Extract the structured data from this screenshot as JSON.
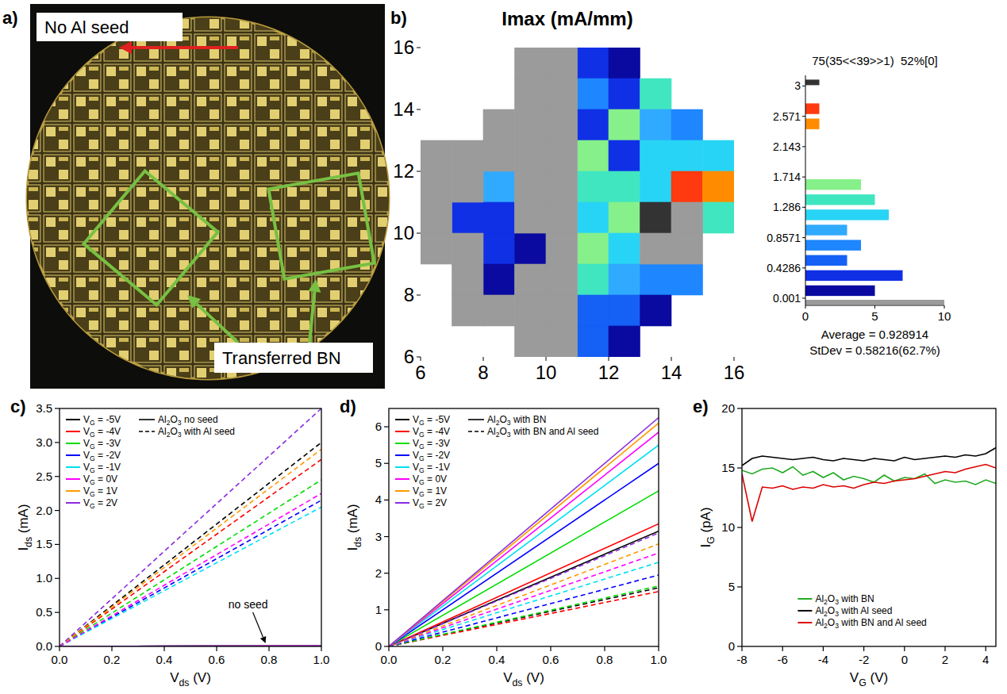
{
  "chart_data": [
    {
      "type": "image",
      "label": "a)",
      "annotations": [
        "No Al seed",
        "Transferred BN"
      ]
    },
    {
      "type": "heatmap",
      "label": "b)",
      "title": "Imax (mA/mm)",
      "xlim": [
        6,
        16
      ],
      "ylim": [
        6,
        16
      ],
      "xticks": [
        6,
        8,
        10,
        12,
        14,
        16
      ],
      "yticks": [
        6,
        8,
        10,
        12,
        14,
        16
      ],
      "cells": [
        {
          "x": 11,
          "y": 15,
          "value": 0.3
        },
        {
          "x": 12,
          "y": 15,
          "value": 0.1
        },
        {
          "x": 11,
          "y": 14,
          "value": 0.75
        },
        {
          "x": 12,
          "y": 14,
          "value": 0.3
        },
        {
          "x": 13,
          "y": 14,
          "value": 1.4
        },
        {
          "x": 11,
          "y": 13,
          "value": 0.3
        },
        {
          "x": 12,
          "y": 13,
          "value": 1.6
        },
        {
          "x": 13,
          "y": 13,
          "value": 0.95
        },
        {
          "x": 14,
          "y": 13,
          "value": 0.75
        },
        {
          "x": 11,
          "y": 12,
          "value": 1.6
        },
        {
          "x": 12,
          "y": 12,
          "value": 0.3
        },
        {
          "x": 13,
          "y": 12,
          "value": 1.15
        },
        {
          "x": 14,
          "y": 12,
          "value": 1.2
        },
        {
          "x": 15,
          "y": 12,
          "value": 1.15
        },
        {
          "x": 8,
          "y": 11,
          "value": 0.95
        },
        {
          "x": 11,
          "y": 11,
          "value": 1.4
        },
        {
          "x": 12,
          "y": 11,
          "value": 1.35
        },
        {
          "x": 13,
          "y": 11,
          "value": 1.15
        },
        {
          "x": 14,
          "y": 11,
          "value": 2.65
        },
        {
          "x": 15,
          "y": 11,
          "value": 2.45
        },
        {
          "x": 7,
          "y": 10,
          "value": 0.3
        },
        {
          "x": 8,
          "y": 10,
          "value": 0.3
        },
        {
          "x": 11,
          "y": 10,
          "value": 1.15
        },
        {
          "x": 12,
          "y": 10,
          "value": 1.6
        },
        {
          "x": 13,
          "y": 10,
          "value": 3.2
        },
        {
          "x": 15,
          "y": 10,
          "value": 1.4
        },
        {
          "x": 8,
          "y": 9,
          "value": 0.3
        },
        {
          "x": 9,
          "y": 9,
          "value": 0.1
        },
        {
          "x": 11,
          "y": 9,
          "value": 1.55
        },
        {
          "x": 12,
          "y": 9,
          "value": 1.1
        },
        {
          "x": 8,
          "y": 8,
          "value": 0.1
        },
        {
          "x": 11,
          "y": 8,
          "value": 1.4
        },
        {
          "x": 12,
          "y": 8,
          "value": 0.95
        },
        {
          "x": 13,
          "y": 8,
          "value": 0.75
        },
        {
          "x": 14,
          "y": 8,
          "value": 0.75
        },
        {
          "x": 11,
          "y": 7,
          "value": 0.55
        },
        {
          "x": 12,
          "y": 7,
          "value": 0.5
        },
        {
          "x": 13,
          "y": 7,
          "value": 0.1
        },
        {
          "x": 11,
          "y": 6,
          "value": 0.5
        },
        {
          "x": 12,
          "y": 6,
          "value": 0.1
        },
        {
          "x": 9,
          "y": 6,
          "value": null
        },
        {
          "x": 10,
          "y": 6,
          "value": null
        },
        {
          "x": 9,
          "y": 7,
          "value": null
        },
        {
          "x": 10,
          "y": 7,
          "value": null
        },
        {
          "x": 9,
          "y": 8,
          "value": null
        },
        {
          "x": 10,
          "y": 8,
          "value": null
        },
        {
          "x": 10,
          "y": 9,
          "value": null
        },
        {
          "x": 9,
          "y": 10,
          "value": null
        },
        {
          "x": 10,
          "y": 10,
          "value": null
        },
        {
          "x": 9,
          "y": 11,
          "value": null
        },
        {
          "x": 10,
          "y": 11,
          "value": null
        },
        {
          "x": 9,
          "y": 12,
          "value": null
        },
        {
          "x": 10,
          "y": 12,
          "value": null
        },
        {
          "x": 9,
          "y": 13,
          "value": null
        },
        {
          "x": 10,
          "y": 13,
          "value": null
        },
        {
          "x": 9,
          "y": 14,
          "value": null
        },
        {
          "x": 10,
          "y": 14,
          "value": null
        },
        {
          "x": 9,
          "y": 15,
          "value": null
        },
        {
          "x": 10,
          "y": 15,
          "value": null
        },
        {
          "x": 6,
          "y": 12,
          "value": null
        },
        {
          "x": 7,
          "y": 12,
          "value": null
        },
        {
          "x": 8,
          "y": 12,
          "value": null
        },
        {
          "x": 6,
          "y": 11,
          "value": null
        },
        {
          "x": 7,
          "y": 11,
          "value": null
        },
        {
          "x": 6,
          "y": 10,
          "value": null
        },
        {
          "x": 14,
          "y": 10,
          "value": null
        },
        {
          "x": 6,
          "y": 9,
          "value": null
        },
        {
          "x": 7,
          "y": 9,
          "value": null
        },
        {
          "x": 13,
          "y": 9,
          "value": null
        },
        {
          "x": 14,
          "y": 9,
          "value": null
        },
        {
          "x": 7,
          "y": 8,
          "value": null
        },
        {
          "x": 8,
          "y": 7,
          "value": null
        },
        {
          "x": 7,
          "y": 7,
          "value": null
        },
        {
          "x": 8,
          "y": 13,
          "value": null
        }
      ],
      "histogram": {
        "header": "75(35<<39>>1)  52%[0]",
        "bins": [
          0.001,
          0.2143,
          0.4286,
          0.6429,
          0.8571,
          1.0714,
          1.2857,
          1.5,
          1.7143,
          1.9286,
          2.1429,
          2.3571,
          2.5714,
          2.7857,
          3
        ],
        "counts": [
          5,
          7,
          3,
          4,
          3,
          6,
          5,
          4,
          0,
          0,
          0,
          1,
          1,
          0
        ],
        "colors": [
          "#0a0aa0",
          "#1030e6",
          "#1560f5",
          "#1e86ff",
          "#30aaff",
          "#28d4f5",
          "#40e6c0",
          "#86f08a",
          "#b4f046",
          "#e0e628",
          "#f5c828",
          "#ff8c00",
          "#ff3a10",
          "#d01010"
        ],
        "overflow": {
          "count": 1,
          "color": "#333333"
        },
        "no_data": {
          "count": 35,
          "color": "#9b9b9b"
        },
        "ylim": [
          -0.1,
          3.15
        ],
        "yticks": [
          0.001,
          0.4286,
          0.8571,
          1.286,
          1.714,
          2.143,
          2.571,
          3
        ],
        "xlim": [
          0,
          10
        ],
        "xticks": [
          0,
          5,
          10
        ],
        "average": "Average = 0.928914",
        "stdev": "StDev = 0.58216(62.7%)"
      }
    },
    {
      "type": "line",
      "label": "c)",
      "x_label": "Vds (V)",
      "y_label": "Ids (mA)",
      "x": [
        0,
        1
      ],
      "xlim": [
        0,
        1
      ],
      "ylim": [
        0,
        3.5
      ],
      "xticks": [
        {
          "value": 0,
          "label": "0.0"
        },
        0.2,
        0.4,
        0.6,
        0.8,
        {
          "value": 1,
          "label": "1.0"
        }
      ],
      "yticks": [
        {
          "value": 0,
          "label": "0.0"
        },
        0.5,
        {
          "value": 1,
          "label": "1.0"
        },
        1.5,
        {
          "value": 2,
          "label": "2.0"
        },
        2.5,
        {
          "value": 3,
          "label": "3.0"
        },
        3.5
      ],
      "legend": "upper left",
      "annotations": [
        {
          "text": "no seed"
        }
      ],
      "series": [
        {
          "name": "VG = -5V",
          "group": "Al2O3 no seed",
          "color": "#000000",
          "line_style": "solid",
          "values": [
            0,
            0.01
          ]
        },
        {
          "name": "VG = -4V",
          "group": "Al2O3 no seed",
          "color": "#ff0000",
          "line_style": "solid",
          "values": [
            0,
            0.01
          ]
        },
        {
          "name": "VG = -3V",
          "group": "Al2O3 no seed",
          "color": "#00dd00",
          "line_style": "solid",
          "values": [
            0,
            0.01
          ]
        },
        {
          "name": "VG = -2V",
          "group": "Al2O3 no seed",
          "color": "#0000ff",
          "line_style": "solid",
          "values": [
            0,
            0.01
          ]
        },
        {
          "name": "VG = -1V",
          "group": "Al2O3 no seed",
          "color": "#00e0f0",
          "line_style": "solid",
          "values": [
            0,
            0.01
          ]
        },
        {
          "name": "VG = 0V",
          "group": "Al2O3 no seed",
          "color": "#ff00ff",
          "line_style": "solid",
          "values": [
            0,
            0.01
          ]
        },
        {
          "name": "VG = 1V",
          "group": "Al2O3 no seed",
          "color": "#ff9900",
          "line_style": "solid",
          "values": [
            0,
            0.01
          ]
        },
        {
          "name": "VG = 2V",
          "group": "Al2O3 no seed",
          "color": "#8a2be2",
          "line_style": "solid",
          "values": [
            0,
            0.01
          ]
        },
        {
          "name": "VG = -5V",
          "group": "Al2O3 with Al seed",
          "color": "#000000",
          "line_style": "dashed",
          "values": [
            0,
            3.0
          ]
        },
        {
          "name": "VG = -4V",
          "group": "Al2O3 with Al seed",
          "color": "#ff0000",
          "line_style": "dashed",
          "values": [
            0,
            2.75
          ]
        },
        {
          "name": "VG = -3V",
          "group": "Al2O3 with Al seed",
          "color": "#00dd00",
          "line_style": "dashed",
          "values": [
            0,
            2.45
          ]
        },
        {
          "name": "VG = -2V",
          "group": "Al2O3 with Al seed",
          "color": "#0000ff",
          "line_style": "dashed",
          "values": [
            0,
            2.15
          ]
        },
        {
          "name": "VG = -1V",
          "group": "Al2O3 with Al seed",
          "color": "#00e0f0",
          "line_style": "dashed",
          "values": [
            0,
            2.05
          ]
        },
        {
          "name": "VG = 0V",
          "group": "Al2O3 with Al seed",
          "color": "#ff00ff",
          "line_style": "dashed",
          "values": [
            0,
            2.25
          ]
        },
        {
          "name": "VG = 1V",
          "group": "Al2O3 with Al seed",
          "color": "#ff9900",
          "line_style": "dashed",
          "values": [
            0,
            2.9
          ]
        },
        {
          "name": "VG = 2V",
          "group": "Al2O3 with Al seed",
          "color": "#8a2be2",
          "line_style": "dashed",
          "values": [
            0,
            3.5
          ]
        }
      ]
    },
    {
      "type": "line",
      "label": "d)",
      "x_label": "Vds (V)",
      "y_label": "Ids (mA)",
      "x": [
        0,
        1
      ],
      "xlim": [
        0,
        1
      ],
      "ylim": [
        0,
        6.5
      ],
      "xticks": [
        {
          "value": 0,
          "label": "0.0"
        },
        0.2,
        0.4,
        0.6,
        0.8,
        {
          "value": 1,
          "label": "1.0"
        }
      ],
      "yticks": [
        0,
        1,
        2,
        3,
        4,
        5,
        6
      ],
      "legend": "upper left",
      "series": [
        {
          "name": "VG = -5V",
          "group": "Al2O3 with BN",
          "color": "#000000",
          "line_style": "solid",
          "values": [
            0,
            3.15
          ]
        },
        {
          "name": "VG = -4V",
          "group": "Al2O3 with BN",
          "color": "#ff0000",
          "line_style": "solid",
          "values": [
            0,
            3.35
          ]
        },
        {
          "name": "VG = -3V",
          "group": "Al2O3 with BN",
          "color": "#00dd00",
          "line_style": "solid",
          "values": [
            0,
            4.25
          ]
        },
        {
          "name": "VG = -2V",
          "group": "Al2O3 with BN",
          "color": "#0000ff",
          "line_style": "solid",
          "values": [
            0,
            5.0
          ]
        },
        {
          "name": "VG = -1V",
          "group": "Al2O3 with BN",
          "color": "#00e0f0",
          "line_style": "solid",
          "values": [
            0,
            5.5
          ]
        },
        {
          "name": "VG = 0V",
          "group": "Al2O3 with BN",
          "color": "#ff00ff",
          "line_style": "solid",
          "values": [
            0,
            5.85
          ]
        },
        {
          "name": "VG = 1V",
          "group": "Al2O3 with BN",
          "color": "#ff9900",
          "line_style": "solid",
          "values": [
            0,
            6.1
          ]
        },
        {
          "name": "VG = 2V",
          "group": "Al2O3 with BN",
          "color": "#8a2be2",
          "line_style": "solid",
          "values": [
            0,
            6.25
          ]
        },
        {
          "name": "VG = -5V",
          "group": "Al2O3 with BN and Al seed",
          "color": "#000000",
          "line_style": "dashed",
          "values": [
            0,
            1.6
          ]
        },
        {
          "name": "VG = -4V",
          "group": "Al2O3 with BN and Al seed",
          "color": "#ff0000",
          "line_style": "dashed",
          "values": [
            0,
            1.5
          ]
        },
        {
          "name": "VG = -3V",
          "group": "Al2O3 with BN and Al seed",
          "color": "#00dd00",
          "line_style": "dashed",
          "values": [
            0,
            1.65
          ]
        },
        {
          "name": "VG = -2V",
          "group": "Al2O3 with BN and Al seed",
          "color": "#0000ff",
          "line_style": "dashed",
          "values": [
            0,
            1.95
          ]
        },
        {
          "name": "VG = -1V",
          "group": "Al2O3 with BN and Al seed",
          "color": "#00e0f0",
          "line_style": "dashed",
          "values": [
            0,
            2.3
          ]
        },
        {
          "name": "VG = 0V",
          "group": "Al2O3 with BN and Al seed",
          "color": "#ff00ff",
          "line_style": "dashed",
          "values": [
            0,
            2.55
          ]
        },
        {
          "name": "VG = 1V",
          "group": "Al2O3 with BN and Al seed",
          "color": "#ff9900",
          "line_style": "dashed",
          "values": [
            0,
            2.8
          ]
        },
        {
          "name": "VG = 2V",
          "group": "Al2O3 with BN and Al seed",
          "color": "#8a2be2",
          "line_style": "dashed",
          "values": [
            0,
            3.1
          ]
        }
      ]
    },
    {
      "type": "line",
      "label": "e)",
      "x_label": "VG (V)",
      "y_label": "IG (pA)",
      "x": [
        -8,
        -7.5,
        -7,
        -6.5,
        -6,
        -5.5,
        -5,
        -4.5,
        -4,
        -3.5,
        -3,
        -2.5,
        -2,
        -1.5,
        -1,
        -0.5,
        0,
        0.5,
        1,
        1.5,
        2,
        2.5,
        3,
        3.5,
        4,
        4.5
      ],
      "xlim": [
        -8,
        4.5
      ],
      "ylim": [
        0,
        20
      ],
      "xticks": [
        -8,
        -6,
        -4,
        -2,
        0,
        2,
        4
      ],
      "yticks": [
        0,
        5,
        10,
        15,
        20
      ],
      "legend": "lower center",
      "series": [
        {
          "name": "Al2O3 with BN",
          "color": "#22aa22",
          "line_style": "solid",
          "values": [
            14.8,
            14.5,
            14.9,
            15.0,
            14.6,
            15.1,
            14.4,
            14.7,
            14.2,
            14.6,
            14.0,
            14.3,
            14.1,
            13.8,
            14.4,
            13.9,
            14.2,
            14.1,
            14.5,
            13.7,
            14.0,
            13.8,
            13.9,
            13.6,
            14.0,
            13.7
          ]
        },
        {
          "name": "Al2O3 with Al seed",
          "color": "#000000",
          "line_style": "solid",
          "values": [
            15.2,
            15.8,
            16.0,
            15.9,
            15.8,
            15.7,
            15.8,
            15.9,
            15.7,
            15.6,
            15.8,
            15.7,
            15.6,
            15.8,
            15.7,
            15.6,
            15.9,
            15.7,
            15.8,
            15.9,
            16.0,
            15.9,
            16.1,
            16.0,
            16.2,
            16.7
          ]
        },
        {
          "name": "Al2O3 with BN and Al seed",
          "color": "#dd0000",
          "line_style": "solid",
          "values": [
            14.5,
            10.5,
            13.4,
            13.3,
            13.5,
            13.2,
            13.4,
            13.3,
            13.6,
            13.4,
            13.5,
            13.3,
            13.6,
            13.8,
            13.7,
            13.9,
            14.0,
            14.1,
            14.3,
            14.5,
            14.7,
            14.6,
            14.9,
            15.1,
            15.3,
            15.0
          ]
        }
      ]
    }
  ]
}
